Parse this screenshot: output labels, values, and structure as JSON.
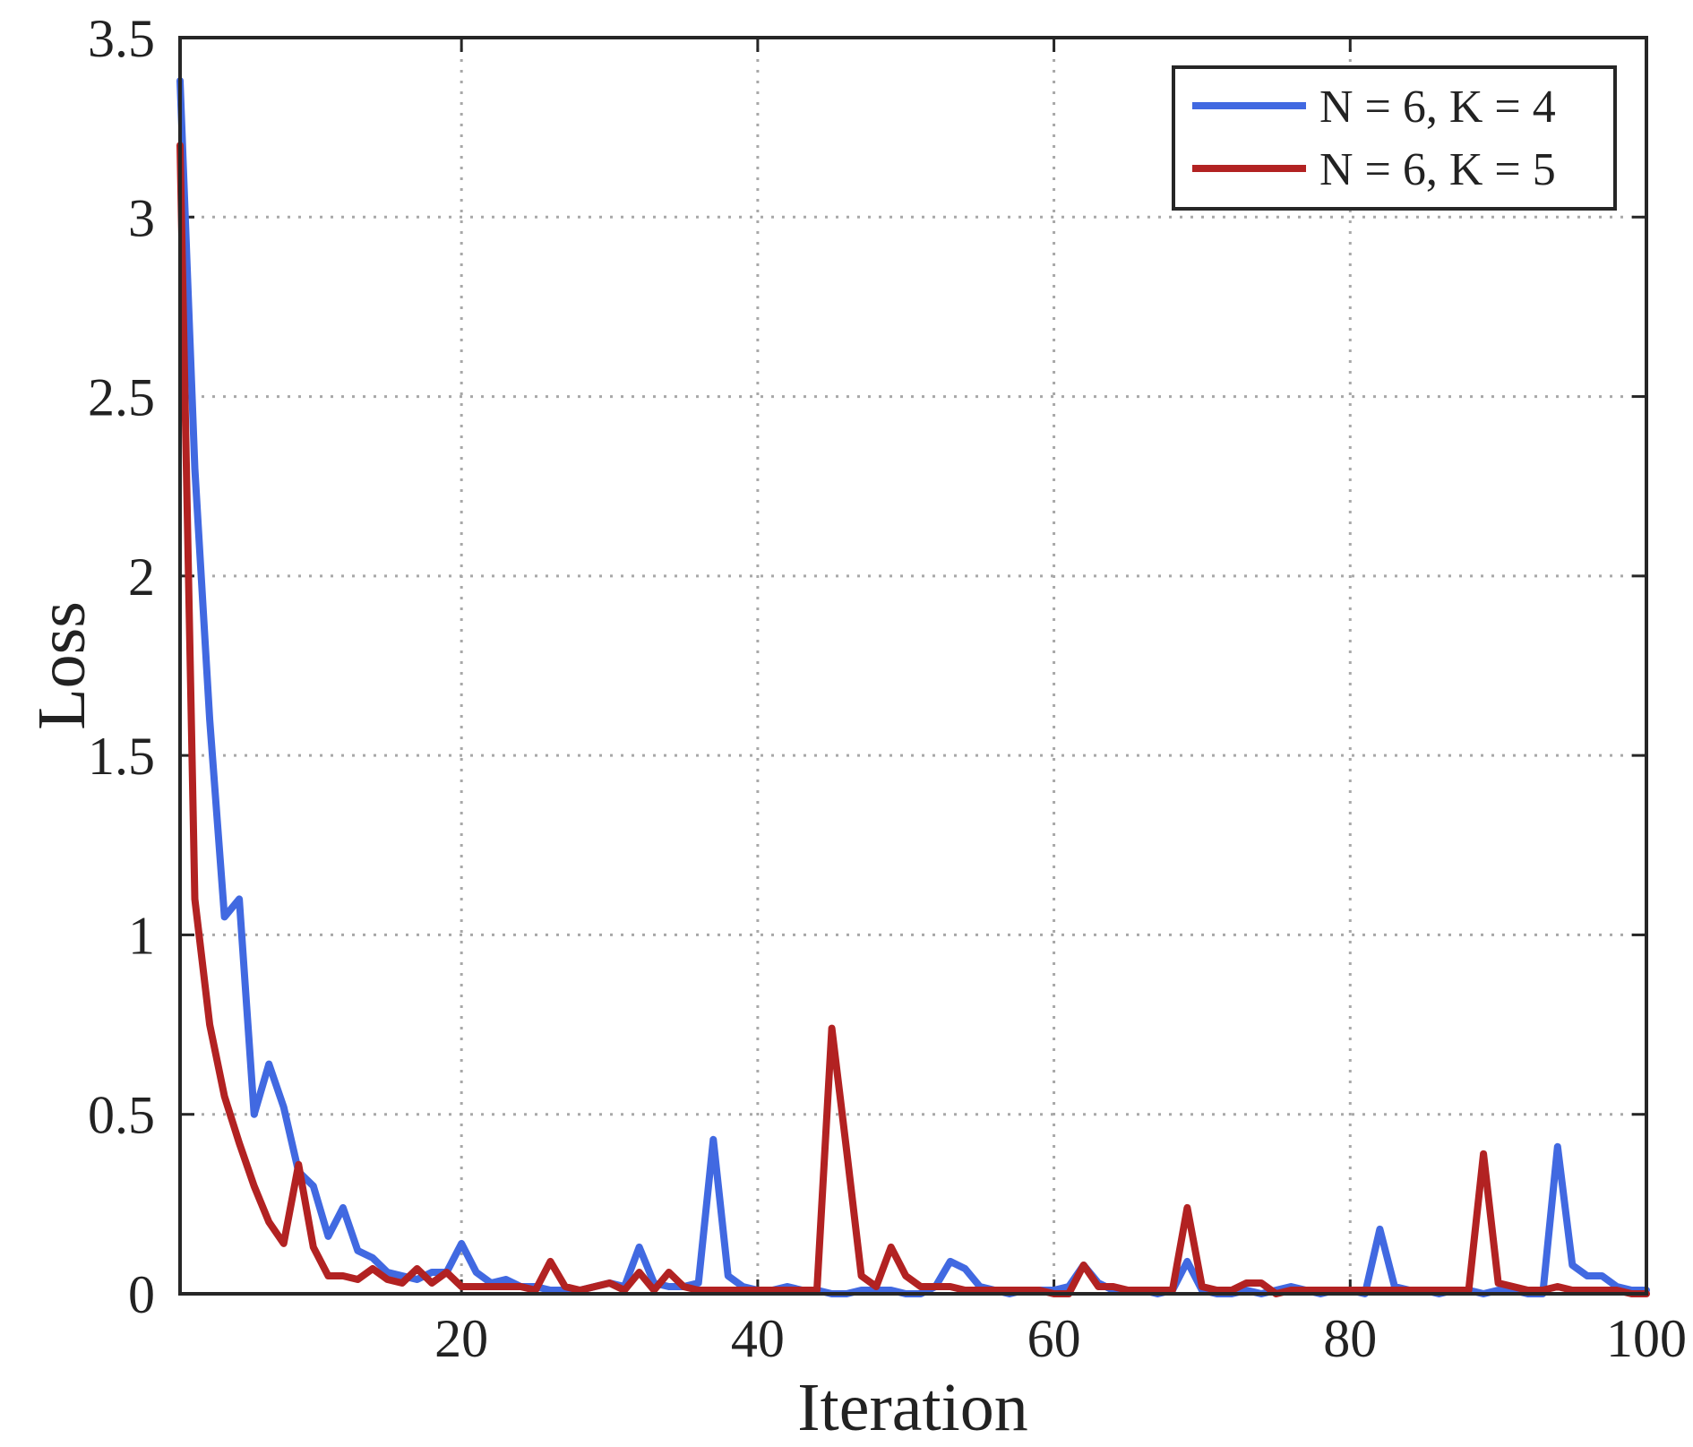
{
  "chart_data": {
    "type": "line",
    "title": "",
    "xlabel": "Iteration",
    "ylabel": "Loss",
    "xlim": [
      1,
      100
    ],
    "ylim": [
      0,
      3.5
    ],
    "xticks": [
      20,
      40,
      60,
      80,
      100
    ],
    "xtick_labels": [
      "20",
      "40",
      "60",
      "80",
      "100"
    ],
    "yticks": [
      0,
      0.5,
      1,
      1.5,
      2,
      2.5,
      3,
      3.5
    ],
    "ytick_labels": [
      "0",
      "0.5",
      "1",
      "1.5",
      "2",
      "2.5",
      "3",
      "3.5"
    ],
    "grid": true,
    "legend_position": "top-right",
    "x": [
      1,
      2,
      3,
      4,
      5,
      6,
      7,
      8,
      9,
      10,
      11,
      12,
      13,
      14,
      15,
      16,
      17,
      18,
      19,
      20,
      21,
      22,
      23,
      24,
      25,
      26,
      27,
      28,
      29,
      30,
      31,
      32,
      33,
      34,
      35,
      36,
      37,
      38,
      39,
      40,
      41,
      42,
      43,
      44,
      45,
      46,
      47,
      48,
      49,
      50,
      51,
      52,
      53,
      54,
      55,
      56,
      57,
      58,
      59,
      60,
      61,
      62,
      63,
      64,
      65,
      66,
      67,
      68,
      69,
      70,
      71,
      72,
      73,
      74,
      75,
      76,
      77,
      78,
      79,
      80,
      81,
      82,
      83,
      84,
      85,
      86,
      87,
      88,
      89,
      90,
      91,
      92,
      93,
      94,
      95,
      96,
      97,
      98,
      99,
      100
    ],
    "series": [
      {
        "name": "N = 6, K = 4",
        "color": "#4169e1",
        "values": [
          3.38,
          2.3,
          1.6,
          1.05,
          1.1,
          0.5,
          0.64,
          0.52,
          0.34,
          0.3,
          0.16,
          0.24,
          0.12,
          0.1,
          0.06,
          0.05,
          0.04,
          0.06,
          0.06,
          0.14,
          0.06,
          0.03,
          0.04,
          0.02,
          0.02,
          0.01,
          0.01,
          0.01,
          0.02,
          0.03,
          0.02,
          0.13,
          0.03,
          0.02,
          0.02,
          0.03,
          0.43,
          0.05,
          0.02,
          0.01,
          0.01,
          0.02,
          0.01,
          0.01,
          0.0,
          0.0,
          0.01,
          0.01,
          0.01,
          0.0,
          0.0,
          0.02,
          0.09,
          0.07,
          0.02,
          0.01,
          0.0,
          0.01,
          0.01,
          0.01,
          0.02,
          0.08,
          0.03,
          0.01,
          0.01,
          0.01,
          0.0,
          0.01,
          0.09,
          0.01,
          0.0,
          0.0,
          0.01,
          0.0,
          0.01,
          0.02,
          0.01,
          0.0,
          0.01,
          0.01,
          0.0,
          0.18,
          0.02,
          0.01,
          0.01,
          0.0,
          0.01,
          0.01,
          0.0,
          0.01,
          0.01,
          0.0,
          0.0,
          0.41,
          0.08,
          0.05,
          0.05,
          0.02,
          0.01,
          0.01
        ]
      },
      {
        "name": "N = 6, K = 5",
        "color": "#b22222",
        "values": [
          3.2,
          1.1,
          0.75,
          0.55,
          0.42,
          0.3,
          0.2,
          0.14,
          0.36,
          0.13,
          0.05,
          0.05,
          0.04,
          0.07,
          0.04,
          0.03,
          0.07,
          0.03,
          0.06,
          0.02,
          0.02,
          0.02,
          0.02,
          0.02,
          0.01,
          0.09,
          0.02,
          0.01,
          0.02,
          0.03,
          0.01,
          0.06,
          0.01,
          0.06,
          0.02,
          0.01,
          0.01,
          0.01,
          0.01,
          0.01,
          0.01,
          0.01,
          0.01,
          0.01,
          0.74,
          0.4,
          0.05,
          0.02,
          0.13,
          0.05,
          0.02,
          0.02,
          0.02,
          0.01,
          0.01,
          0.01,
          0.01,
          0.01,
          0.01,
          0.0,
          0.0,
          0.08,
          0.02,
          0.02,
          0.01,
          0.01,
          0.01,
          0.01,
          0.24,
          0.02,
          0.01,
          0.01,
          0.03,
          0.03,
          0.0,
          0.01,
          0.01,
          0.01,
          0.01,
          0.01,
          0.01,
          0.01,
          0.01,
          0.01,
          0.01,
          0.01,
          0.01,
          0.01,
          0.39,
          0.03,
          0.02,
          0.01,
          0.01,
          0.02,
          0.01,
          0.01,
          0.01,
          0.01,
          0.0,
          0.0
        ]
      }
    ]
  }
}
